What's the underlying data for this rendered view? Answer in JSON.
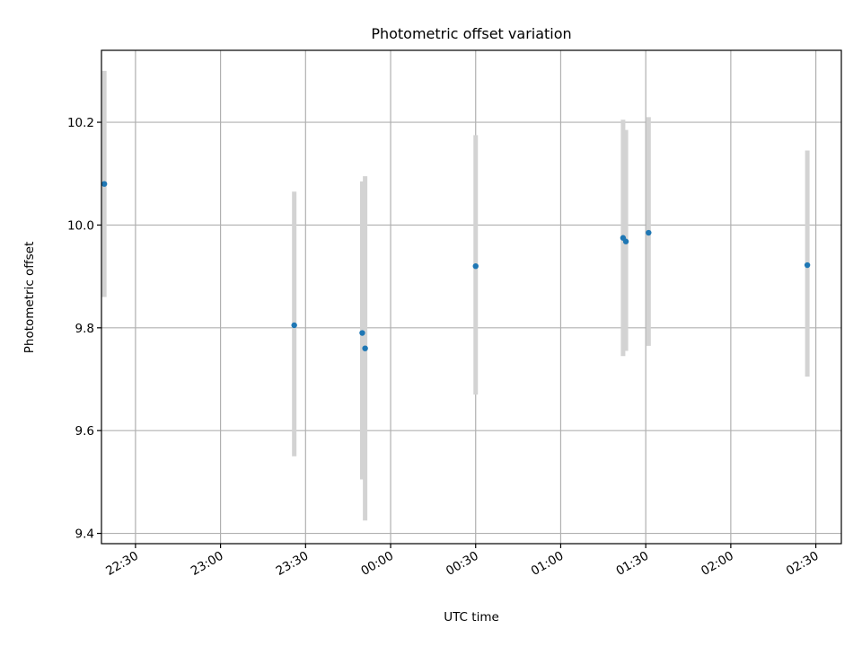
{
  "chart_data": {
    "type": "scatter",
    "title": "Photometric offset variation",
    "xlabel": "UTC time",
    "ylabel": "Photometric offset",
    "x_ticks": [
      "22:30",
      "23:00",
      "23:30",
      "00:00",
      "00:30",
      "01:00",
      "01:30",
      "02:00",
      "02:30"
    ],
    "x_range": [
      "22:18",
      "02:39"
    ],
    "y_ticks": [
      "9.4",
      "9.6",
      "9.8",
      "10.0",
      "10.2"
    ],
    "ylim": [
      9.38,
      10.34
    ],
    "grid": true,
    "series": [
      {
        "x": [
          "22:19",
          "23:26",
          "23:50",
          "23:51",
          "00:30",
          "01:22",
          "01:23",
          "01:31",
          "02:27"
        ],
        "y": [
          10.08,
          9.805,
          9.79,
          9.76,
          9.92,
          9.975,
          9.968,
          9.985,
          9.922
        ],
        "yerr_low": [
          9.86,
          9.55,
          9.505,
          9.425,
          9.67,
          9.745,
          9.755,
          9.765,
          9.705
        ],
        "yerr_high": [
          10.3,
          10.065,
          10.085,
          10.095,
          10.175,
          10.205,
          10.185,
          10.21,
          10.145
        ]
      }
    ],
    "colors": {
      "marker": "#1f77b4",
      "errorbar": "#d3d3d3"
    }
  }
}
